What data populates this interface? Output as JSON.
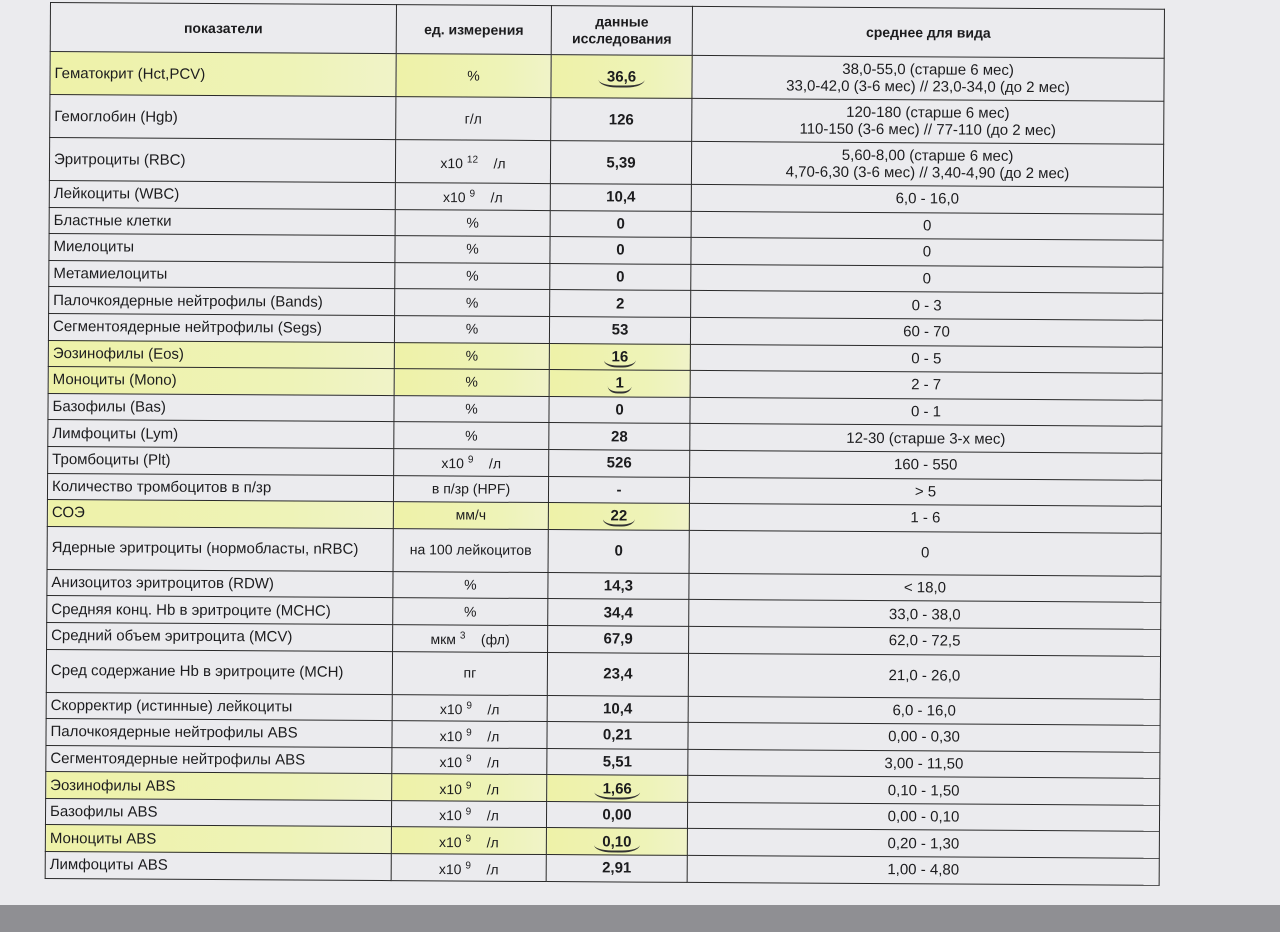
{
  "headers": [
    "показатели",
    "ед. измерения",
    "данные исследования",
    "среднее для вида"
  ],
  "highlight_color": "#eef2a8",
  "rows": [
    {
      "name": "Гематокрит (Hct,PCV)",
      "unit": "%",
      "value": "36,6",
      "range": "38,0-55,0 (старше 6 мес)",
      "range2": "33,0-42,0 (3-6 мес)  //  23,0-34,0 (до 2 мес)",
      "hl": true
    },
    {
      "name": "Гемоглобин (Hgb)",
      "unit": "г/л",
      "value": "126",
      "range": "120-180 (старше 6 мес)",
      "range2": "110-150 (3-6 мес)  //  77-110  (до 2 мес)"
    },
    {
      "name": "Эритроциты (RBC)",
      "unit": "x10",
      "exp": "12",
      "unit2": "/л",
      "value": "5,39",
      "range": "5,60-8,00 (старше 6 мес)",
      "range2": "4,70-6,30 (3-6 мес)  //  3,40-4,90 (до 2 мес)"
    },
    {
      "name": "Лейкоциты (WBC)",
      "unit": "x10",
      "exp": "9",
      "unit2": "/л",
      "value": "10,4",
      "range": "6,0 - 16,0"
    },
    {
      "name": "Бластные клетки",
      "unit": "%",
      "value": "0",
      "range": "0"
    },
    {
      "name": "Миелоциты",
      "unit": "%",
      "value": "0",
      "range": "0"
    },
    {
      "name": "Метамиелоциты",
      "unit": "%",
      "value": "0",
      "range": "0"
    },
    {
      "name": "Палочкоядерные нейтрофилы (Bands)",
      "unit": "%",
      "value": "2",
      "range": "0 - 3"
    },
    {
      "name": "Сегментоядерные нейтрофилы (Segs)",
      "unit": "%",
      "value": "53",
      "range": "60 - 70"
    },
    {
      "name": "Эозинофилы (Eos)",
      "unit": "%",
      "value": "16",
      "range": "0 - 5",
      "hl": true
    },
    {
      "name": "Моноциты (Mono)",
      "unit": "%",
      "value": "1",
      "range": "2 - 7",
      "hl": true
    },
    {
      "name": "Базофилы (Bas)",
      "unit": "%",
      "value": "0",
      "range": "0 - 1"
    },
    {
      "name": "Лимфоциты (Lym)",
      "unit": "%",
      "value": "28",
      "range": "12-30 (старше 3-х мес)"
    },
    {
      "name": "Тромбоциты (Plt)",
      "unit": "x10",
      "exp": "9",
      "unit2": "/л",
      "value": "526",
      "range": "160 - 550"
    },
    {
      "name": "Количество тромбоцитов в п/зр",
      "unit": "в п/зр (HPF)",
      "value": "-",
      "range": "> 5"
    },
    {
      "name": "СОЭ",
      "unit": "мм/ч",
      "value": "22",
      "range": "1 - 6",
      "hl": true
    },
    {
      "name": "Ядерные эритроциты (нормобласты, nRBC)",
      "unit": "на 100 лейкоцитов",
      "value": "0",
      "range": "0",
      "tall": true
    },
    {
      "name": "Анизоцитоз эритроцитов (RDW)",
      "unit": "%",
      "value": "14,3",
      "range": "< 18,0"
    },
    {
      "name": "Средняя конц. Hb в эритроците (MCHC)",
      "unit": "%",
      "value": "34,4",
      "range": "33,0 - 38,0"
    },
    {
      "name": "Средний объем эритроцита (MCV)",
      "unit": "мкм",
      "exp": "3",
      "unit2": "(фл)",
      "value": "67,9",
      "range": "62,0 - 72,5"
    },
    {
      "name": "Сред содержание Hb в эритроците (MCH)",
      "unit": "пг",
      "value": "23,4",
      "range": "21,0 - 26,0",
      "tall": true
    },
    {
      "name": "Скорректир (истинные) лейкоциты",
      "unit": "x10",
      "exp": "9",
      "unit2": "/л",
      "value": "10,4",
      "range": "6,0 - 16,0"
    },
    {
      "name": "Палочкоядерные нейтрофилы ABS",
      "unit": "x10",
      "exp": "9",
      "unit2": "/л",
      "value": "0,21",
      "range": "0,00 - 0,30"
    },
    {
      "name": "Сегментоядерные нейтрофилы ABS",
      "unit": "x10",
      "exp": "9",
      "unit2": "/л",
      "value": "5,51",
      "range": "3,00 - 11,50"
    },
    {
      "name": "Эозинофилы ABS",
      "unit": "x10",
      "exp": "9",
      "unit2": "/л",
      "value": "1,66",
      "range": "0,10 - 1,50",
      "hl": true
    },
    {
      "name": "Базофилы ABS",
      "unit": "x10",
      "exp": "9",
      "unit2": "/л",
      "value": "0,00",
      "range": "0,00 - 0,10"
    },
    {
      "name": "Моноциты ABS",
      "unit": "x10",
      "exp": "9",
      "unit2": "/л",
      "value": "0,10",
      "range": "0,20 - 1,30",
      "hl": true
    },
    {
      "name": "Лимфоциты ABS",
      "unit": "x10",
      "exp": "9",
      "unit2": "/л",
      "value": "2,91",
      "range": "1,00 - 4,80"
    }
  ]
}
